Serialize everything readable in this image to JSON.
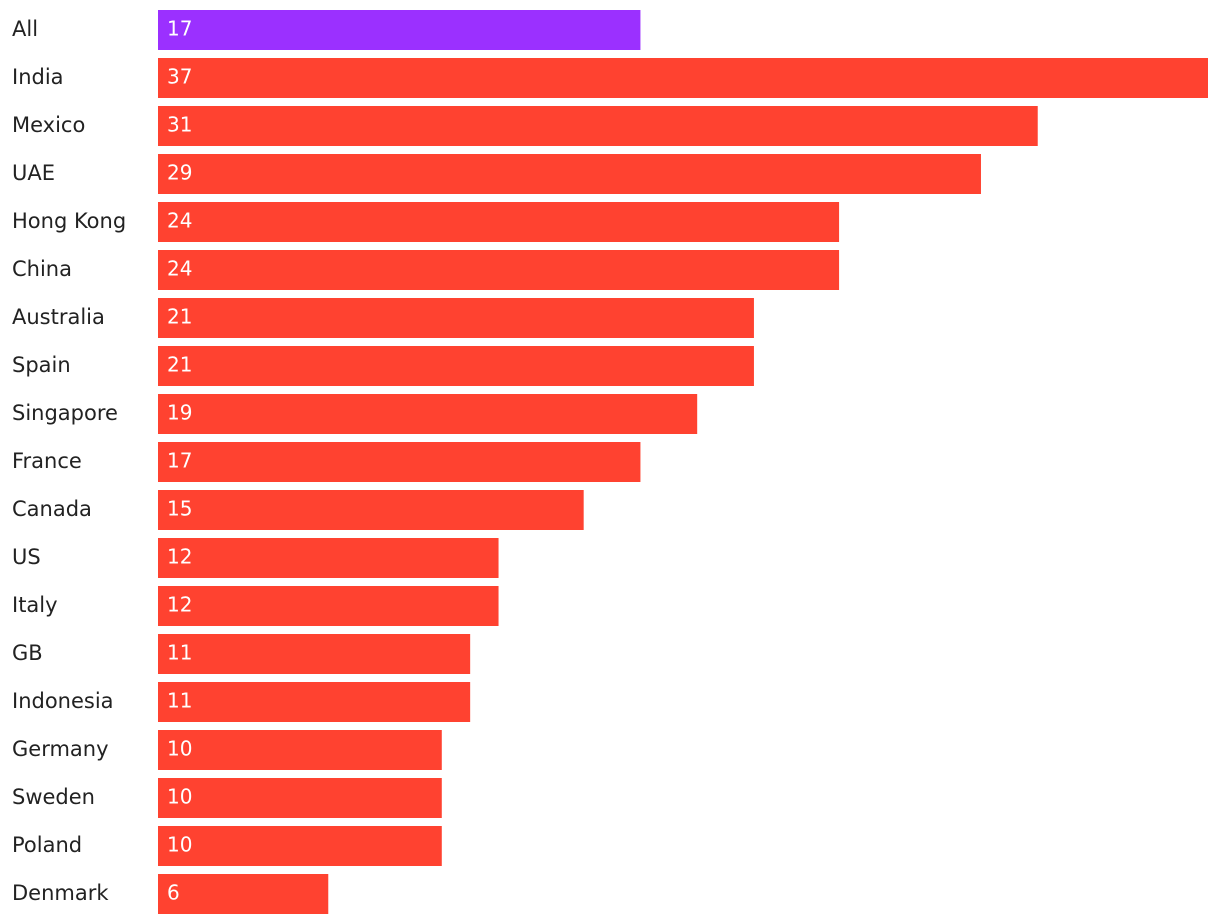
{
  "chart_data": {
    "type": "bar",
    "orientation": "horizontal",
    "categories": [
      "All",
      "India",
      "Mexico",
      "UAE",
      "Hong Kong",
      "China",
      "Australia",
      "Spain",
      "Singapore",
      "France",
      "Canada",
      "US",
      "Italy",
      "GB",
      "Indonesia",
      "Germany",
      "Sweden",
      "Poland",
      "Denmark"
    ],
    "values": [
      17,
      37,
      31,
      29,
      24,
      24,
      21,
      21,
      19,
      17,
      15,
      12,
      12,
      11,
      11,
      10,
      10,
      10,
      6
    ],
    "colors": [
      "#9b30ff",
      "#ff4230",
      "#ff4230",
      "#ff4230",
      "#ff4230",
      "#ff4230",
      "#ff4230",
      "#ff4230",
      "#ff4230",
      "#ff4230",
      "#ff4230",
      "#ff4230",
      "#ff4230",
      "#ff4230",
      "#ff4230",
      "#ff4230",
      "#ff4230",
      "#ff4230",
      "#ff4230"
    ]
  }
}
